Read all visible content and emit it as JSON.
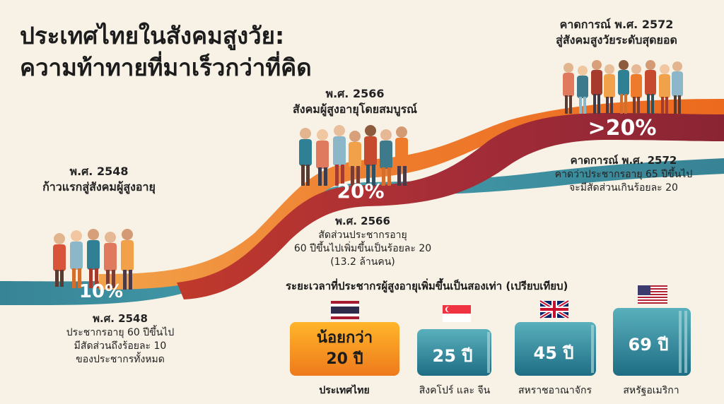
{
  "title": {
    "line1": "ประเทศไทยในสังคมสูงวัย:",
    "line2": "ความท้าทายที่มาเร็วกว่าที่คิด"
  },
  "milestones": [
    {
      "id": "m2548",
      "heading_year": "พ.ศ. 2548",
      "heading_text": "ก้าวแรกสู่สังคมผู้สูงอายุ",
      "percent": "10%",
      "detail_year": "พ.ศ. 2548",
      "detail_lines": [
        "ประชากรอายุ 60 ปีขึ้นไป",
        "มีสัดส่วนถึงร้อยละ 10",
        "ของประชากรทั้งหมด"
      ]
    },
    {
      "id": "m2566",
      "heading_year": "พ.ศ. 2566",
      "heading_text": "สังคมผู้สูงอายุโดยสมบูรณ์",
      "percent": "20%",
      "detail_year": "พ.ศ. 2566",
      "detail_lines": [
        "สัดส่วนประชากรอายุ",
        "60 ปีขึ้นไปเพิ่มขึ้นเป็นร้อยละ 20",
        "(13.2 ล้านคน)"
      ]
    },
    {
      "id": "m2572",
      "heading_year": "คาดการณ์ พ.ศ. 2572",
      "heading_text": "สู่สังคมสูงวัยระดับสุดยอด",
      "percent": ">20%",
      "detail_year": "คาดการณ์ พ.ศ. 2572",
      "detail_lines": [
        "คาดว่าประชากรอายุ 65 ปีขึ้นไป",
        "จะมีสัดส่วนเกินร้อยละ 20"
      ]
    }
  ],
  "comparison": {
    "title": "ระยะเวลาที่ประชากรผู้สูงอายุเพิ่มขึ้นเป็นสองเท่า (เปรียบเทียบ)",
    "items": [
      {
        "value_line1": "น้อยกว่า",
        "value_line2": "20 ปี",
        "label": "ประเทศไทย",
        "flag": "thailand-flag",
        "color": "#f39a1d"
      },
      {
        "value": "25 ปี",
        "label": "สิงคโปร์ และ จีน",
        "flag": "singapore-flag",
        "color": "#2f8fa0"
      },
      {
        "value": "45 ปี",
        "label": "สหราชอาณาจักร",
        "flag": "uk-flag",
        "color": "#2f8fa0"
      },
      {
        "value": "69 ปี",
        "label": "สหรัฐอเมริกา",
        "flag": "usa-flag",
        "color": "#2f8fa0"
      }
    ]
  },
  "colors": {
    "teal": "#2e7d91",
    "orange": "#ee7a2c",
    "crimson": "#9c2a3b",
    "gold": "#f39a1d",
    "background": "#f7f1e6"
  }
}
